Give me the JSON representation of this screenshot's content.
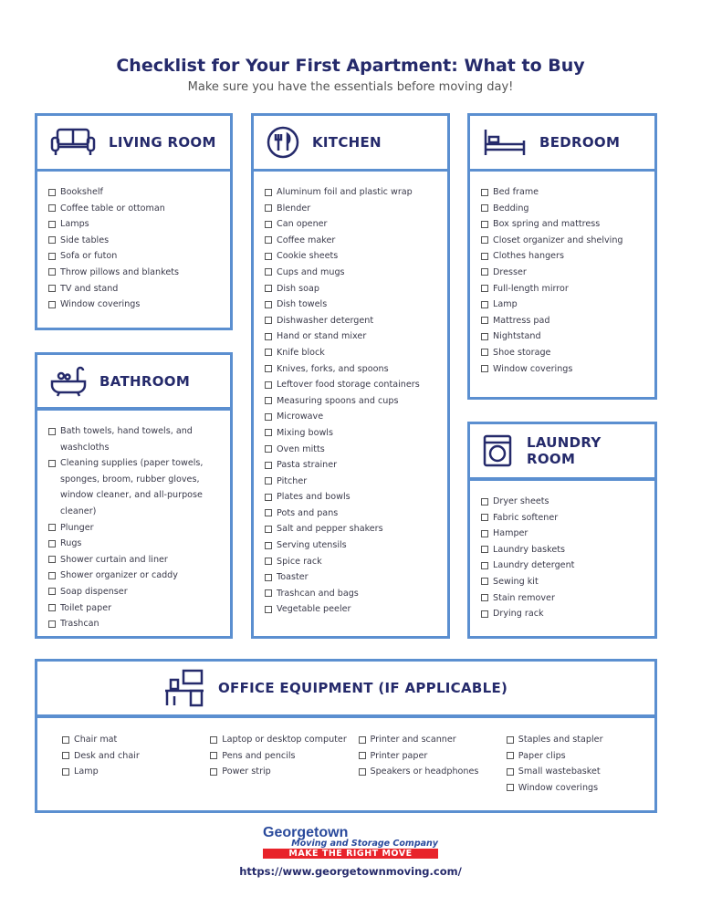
{
  "title": "Checklist for Your First Apartment: What to Buy",
  "subtitle": "Make sure you have the essentials before moving day!",
  "sections": {
    "living": {
      "title": "LIVING ROOM",
      "icon": "sofa-icon",
      "items": [
        "Bookshelf",
        "Coffee table or ottoman",
        "Lamps",
        "Side tables",
        "Sofa or futon",
        "Throw pillows and blankets",
        "TV and stand",
        "Window coverings"
      ]
    },
    "bathroom": {
      "title": "BATHROOM",
      "icon": "bathtub-icon",
      "items": [
        "Bath towels, hand towels, and washcloths",
        "Cleaning supplies (paper towels, sponges, broom, rubber gloves, window cleaner, and all-purpose cleaner)",
        "Plunger",
        "Rugs",
        "Shower curtain and liner",
        "Shower organizer or caddy",
        "Soap dispenser",
        "Toilet paper",
        "Trashcan"
      ]
    },
    "kitchen": {
      "title": "KITCHEN",
      "icon": "plate-utensils-icon",
      "items": [
        "Aluminum foil and plastic wrap",
        "Blender",
        "Can opener",
        "Coffee maker",
        "Cookie sheets",
        "Cups and mugs",
        "Dish soap",
        "Dish towels",
        "Dishwasher detergent",
        "Hand or stand mixer",
        "Knife block",
        "Knives, forks, and spoons",
        "Leftover food storage containers",
        "Measuring spoons and cups",
        "Microwave",
        "Mixing bowls",
        "Oven mitts",
        "Pasta strainer",
        "Pitcher",
        "Plates and bowls",
        "Pots and pans",
        "Salt and pepper shakers",
        "Serving utensils",
        "Spice rack",
        "Toaster",
        "Trashcan and bags",
        "Vegetable peeler"
      ]
    },
    "bedroom": {
      "title": "BEDROOM",
      "icon": "bed-icon",
      "items": [
        "Bed frame",
        "Bedding",
        "Box spring and mattress",
        "Closet organizer and shelving",
        "Clothes hangers",
        "Dresser",
        "Full-length mirror",
        "Lamp",
        "Mattress pad",
        "Nightstand",
        "Shoe storage",
        "Window coverings"
      ]
    },
    "laundry": {
      "title": "LAUNDRY ROOM",
      "icon": "washing-machine-icon",
      "items": [
        "Dryer sheets",
        "Fabric softener",
        "Hamper",
        "Laundry baskets",
        "Laundry detergent",
        "Sewing kit",
        "Stain remover",
        "Drying rack"
      ]
    },
    "office": {
      "title": "OFFICE EQUIPMENT (IF APPLICABLE)",
      "icon": "desk-computer-icon",
      "columns": [
        [
          "Chair mat",
          "Desk and chair",
          "Lamp"
        ],
        [
          "Laptop or desktop computer",
          "Pens and pencils",
          "Power strip"
        ],
        [
          "Printer and scanner",
          "Printer paper",
          "Speakers or headphones"
        ],
        [
          "Staples and stapler",
          "Paper clips",
          "Small wastebasket",
          "Window coverings"
        ]
      ]
    }
  },
  "footer": {
    "logo_name": "Georgetown",
    "logo_sub": "Moving and Storage Company",
    "logo_tagline": "MAKE THE RIGHT MOVE",
    "url": "https://www.georgetownmoving.com/"
  },
  "colors": {
    "border": "#5b8fd0",
    "heading": "#252a6b",
    "tagline_bg": "#e8232a"
  }
}
